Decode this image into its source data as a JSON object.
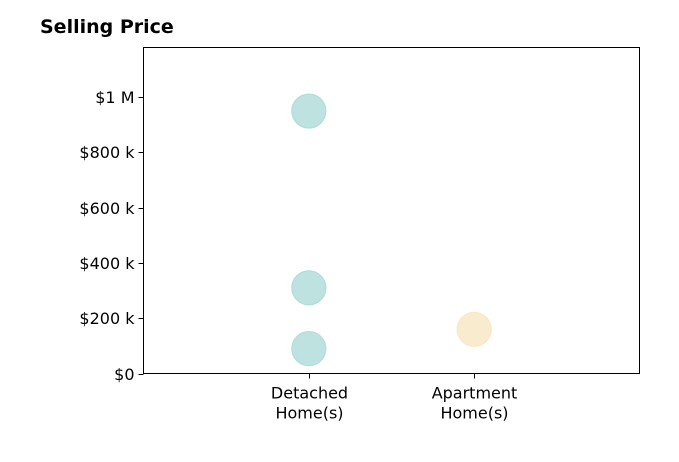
{
  "chart_data": {
    "type": "scatter",
    "title": "Selling Price",
    "xlabel": "",
    "ylabel": "",
    "categories": [
      [
        "Detached",
        "Home(s)"
      ],
      [
        "Apartment",
        "Home(s)"
      ]
    ],
    "xlim": [
      -1,
      2
    ],
    "ylim": [
      0,
      1180000
    ],
    "y_ticks": [
      {
        "value": 0,
        "label": "$0"
      },
      {
        "value": 200000,
        "label": "$200 k"
      },
      {
        "value": 400000,
        "label": "$400 k"
      },
      {
        "value": 600000,
        "label": "$600 k"
      },
      {
        "value": 800000,
        "label": "$800 k"
      },
      {
        "value": 1000000,
        "label": "$1 M"
      }
    ],
    "points": [
      {
        "category_index": 0,
        "value": 950000,
        "color": "#b2ddd9"
      },
      {
        "category_index": 0,
        "value": 310000,
        "color": "#b2ddd9"
      },
      {
        "category_index": 0,
        "value": 90000,
        "color": "#b2ddd9"
      },
      {
        "category_index": 1,
        "value": 160000,
        "color": "#f8e8c6"
      }
    ],
    "grid": false,
    "legend": "none"
  }
}
